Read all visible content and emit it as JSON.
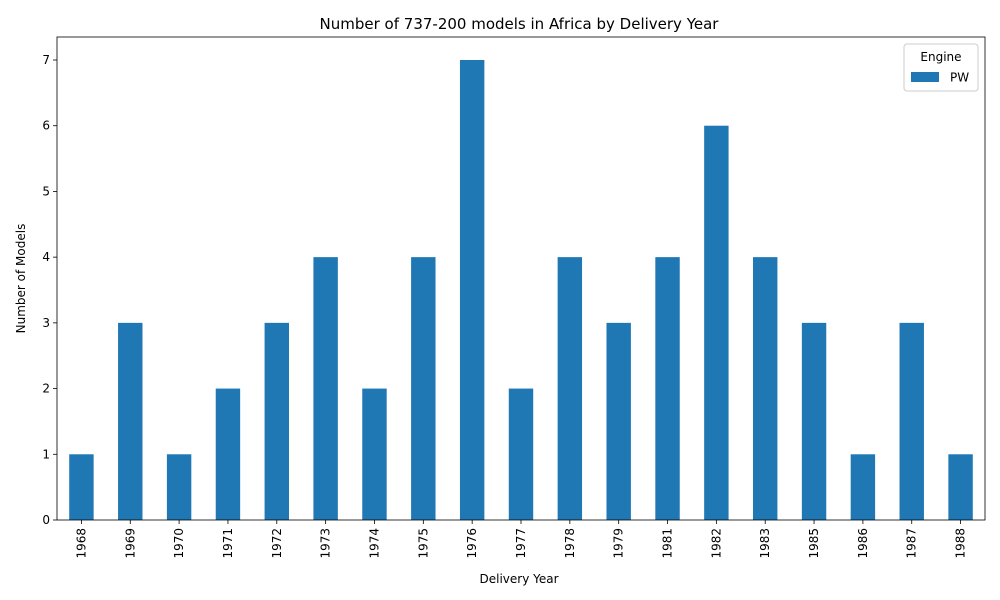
{
  "chart_data": {
    "type": "bar",
    "title": "Number of 737-200 models in Africa by Delivery Year",
    "xlabel": "Delivery Year",
    "ylabel": "Number of Models",
    "categories": [
      "1968",
      "1969",
      "1970",
      "1971",
      "1972",
      "1973",
      "1974",
      "1975",
      "1976",
      "1977",
      "1978",
      "1979",
      "1981",
      "1982",
      "1983",
      "1985",
      "1986",
      "1987",
      "1988"
    ],
    "series": [
      {
        "name": "PW",
        "values": [
          1,
          3,
          1,
          2,
          3,
          4,
          2,
          4,
          7,
          2,
          4,
          3,
          4,
          6,
          4,
          3,
          1,
          3,
          1
        ],
        "color": "#1f77b4"
      }
    ],
    "ylim": [
      0,
      7.35
    ],
    "yticks": [
      0,
      1,
      2,
      3,
      4,
      5,
      6,
      7
    ],
    "grid": false,
    "legend": {
      "title": "Engine",
      "position": "top-right"
    }
  }
}
